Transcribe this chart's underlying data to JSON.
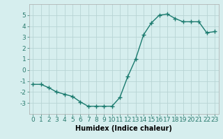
{
  "x": [
    0,
    1,
    2,
    3,
    4,
    5,
    6,
    7,
    8,
    9,
    10,
    11,
    12,
    13,
    14,
    15,
    16,
    17,
    18,
    19,
    20,
    21,
    22,
    23
  ],
  "y": [
    -1.3,
    -1.3,
    -1.6,
    -2.0,
    -2.2,
    -2.4,
    -2.9,
    -3.3,
    -3.3,
    -3.3,
    -3.3,
    -2.5,
    -0.6,
    1.0,
    3.2,
    4.3,
    5.0,
    5.1,
    4.7,
    4.4,
    4.4,
    4.4,
    3.4,
    3.5
  ],
  "line_color": "#1a7a6e",
  "marker": "+",
  "marker_size": 4,
  "linewidth": 1.0,
  "xlabel": "Humidex (Indice chaleur)",
  "xlabel_fontsize": 7,
  "ylim": [
    -4,
    6
  ],
  "xlim": [
    -0.5,
    23.5
  ],
  "yticks": [
    -3,
    -2,
    -1,
    0,
    1,
    2,
    3,
    4,
    5
  ],
  "xticks": [
    0,
    1,
    2,
    3,
    4,
    5,
    6,
    7,
    8,
    9,
    10,
    11,
    12,
    13,
    14,
    15,
    16,
    17,
    18,
    19,
    20,
    21,
    22,
    23
  ],
  "background_color": "#d6eeee",
  "grid_color": "#b8d4d4",
  "tick_fontsize": 6.5,
  "figure_bg": "#d6eeee"
}
